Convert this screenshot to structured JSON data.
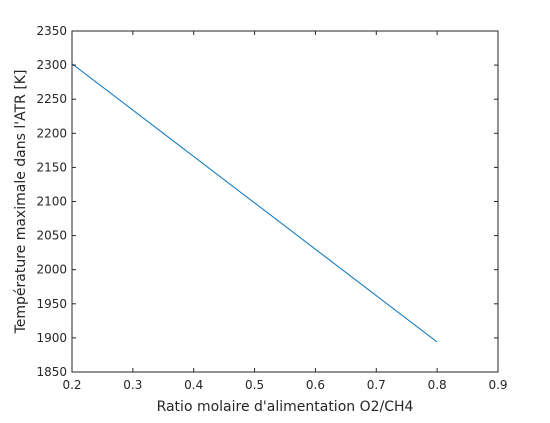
{
  "chart_data": {
    "type": "line",
    "title": "",
    "xlabel": "Ratio molaire d'alimentation O2/CH4",
    "ylabel": "Température maximale dans l'ATR [K]",
    "xlim": [
      0.2,
      0.9
    ],
    "ylim": [
      1850,
      2350
    ],
    "xticks": [
      "0.2",
      "0.3",
      "0.4",
      "0.5",
      "0.6",
      "0.7",
      "0.8",
      "0.9"
    ],
    "yticks": [
      "1850",
      "1900",
      "1950",
      "2000",
      "2050",
      "2100",
      "2150",
      "2200",
      "2250",
      "2300",
      "2350"
    ],
    "grid": false,
    "box": true,
    "series": [
      {
        "color": "#0072bd",
        "x": [
          0.2,
          0.8
        ],
        "y": [
          2302,
          1894
        ]
      }
    ]
  }
}
